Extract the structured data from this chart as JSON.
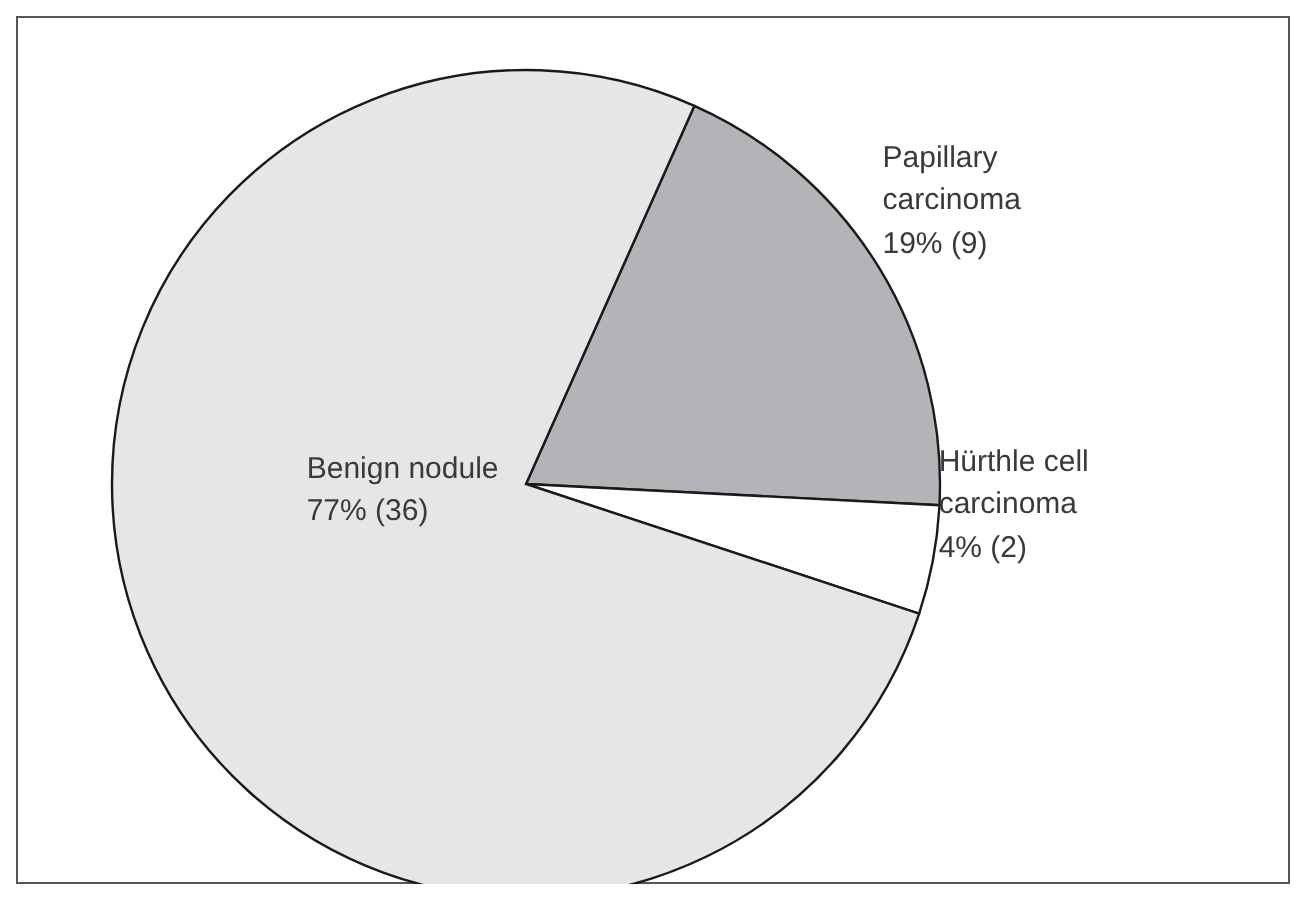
{
  "chart_data": {
    "type": "pie",
    "categories": [
      "Papillary carcinoma",
      "Hürthle cell carcinoma",
      "Benign nodule"
    ],
    "values": [
      9,
      2,
      36
    ],
    "colors": [
      "#b3b4b7",
      "#ffffff",
      "#e5e6e8"
    ],
    "value_labels": [
      "19% (9)",
      "4% (2)",
      "77% (36)"
    ],
    "legend": false
  }
}
